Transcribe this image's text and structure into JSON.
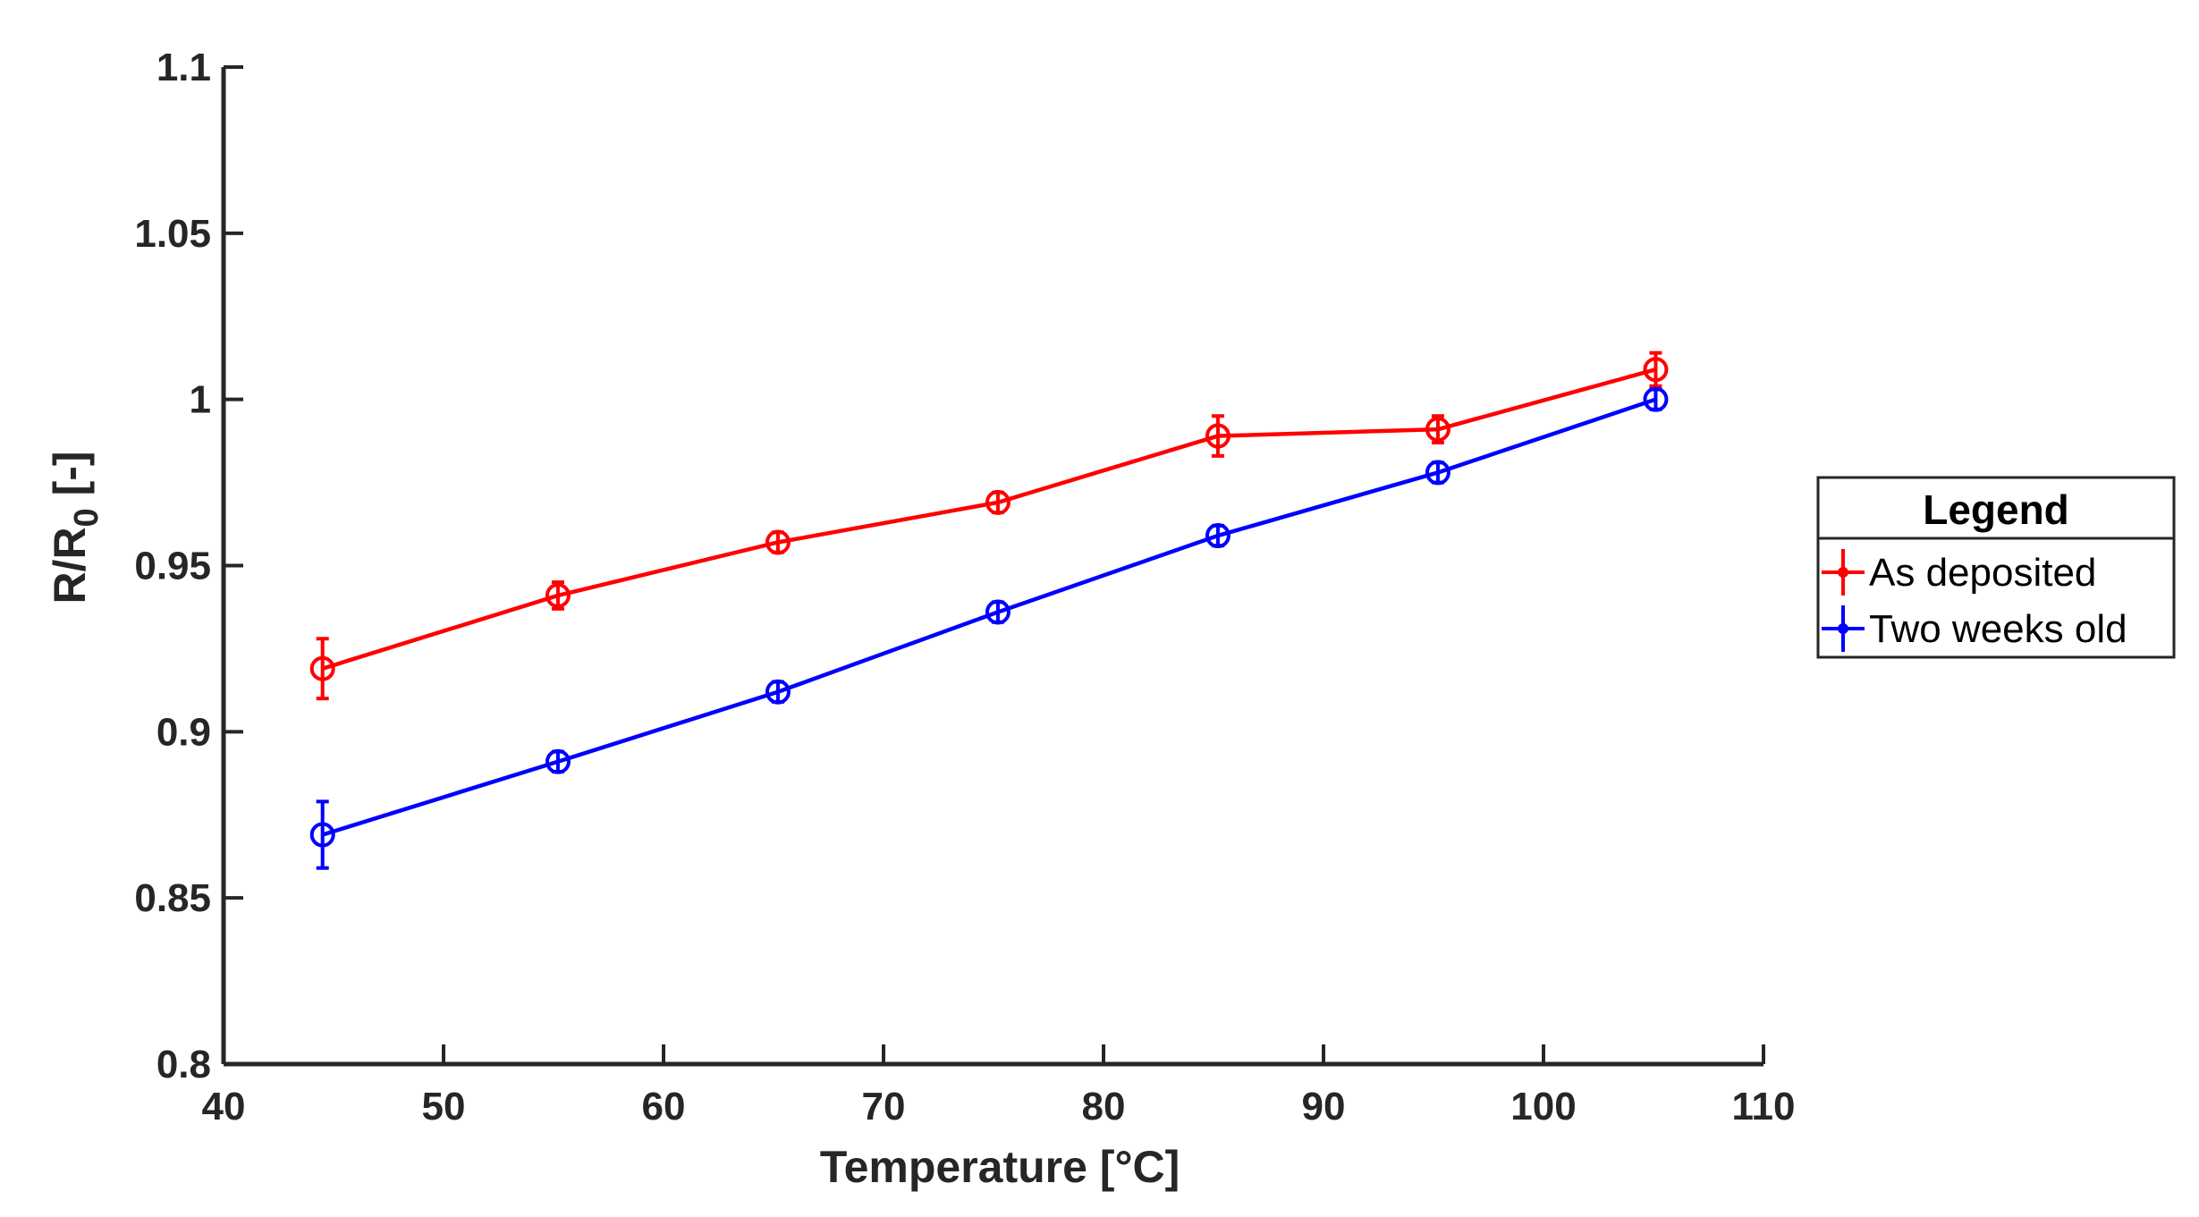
{
  "chart_data": {
    "type": "line",
    "title": "",
    "xlabel": "Temperature [",
    "xlabel_unit": "°C",
    "xlabel_close": "]",
    "ylabel_main": "R/R",
    "ylabel_sub": "0",
    "ylabel_unit": " [-]",
    "xlim": [
      40,
      110
    ],
    "ylim": [
      0.8,
      1.1
    ],
    "xticks": [
      40,
      50,
      60,
      70,
      80,
      90,
      100,
      110
    ],
    "xtick_labels": [
      "40",
      "50",
      "60",
      "70",
      "80",
      "90",
      "100",
      "110"
    ],
    "yticks": [
      0.8,
      0.85,
      0.9,
      0.95,
      1.0,
      1.05,
      1.1
    ],
    "ytick_labels": [
      "0.8",
      "0.85",
      "0.9",
      "0.95",
      "1",
      "1.05",
      "1.1"
    ],
    "grid": false,
    "legend": {
      "title": "Legend",
      "placement": "outside-right"
    },
    "series": [
      {
        "name": "As deposited",
        "color": "#ff0000",
        "x": [
          44.5,
          55.2,
          65.2,
          75.2,
          85.2,
          95.2,
          105.1
        ],
        "y": [
          0.919,
          0.941,
          0.957,
          0.969,
          0.989,
          0.991,
          1.009
        ],
        "err": [
          0.009,
          0.004,
          0.003,
          0.003,
          0.006,
          0.004,
          0.005
        ]
      },
      {
        "name": "Two weeks old",
        "color": "#0000ff",
        "x": [
          44.5,
          55.2,
          65.2,
          75.2,
          85.2,
          95.2,
          105.1
        ],
        "y": [
          0.869,
          0.891,
          0.912,
          0.936,
          0.959,
          0.978,
          1.0
        ],
        "err": [
          0.01,
          0.003,
          0.003,
          0.003,
          0.003,
          0.003,
          0.003
        ]
      }
    ]
  }
}
